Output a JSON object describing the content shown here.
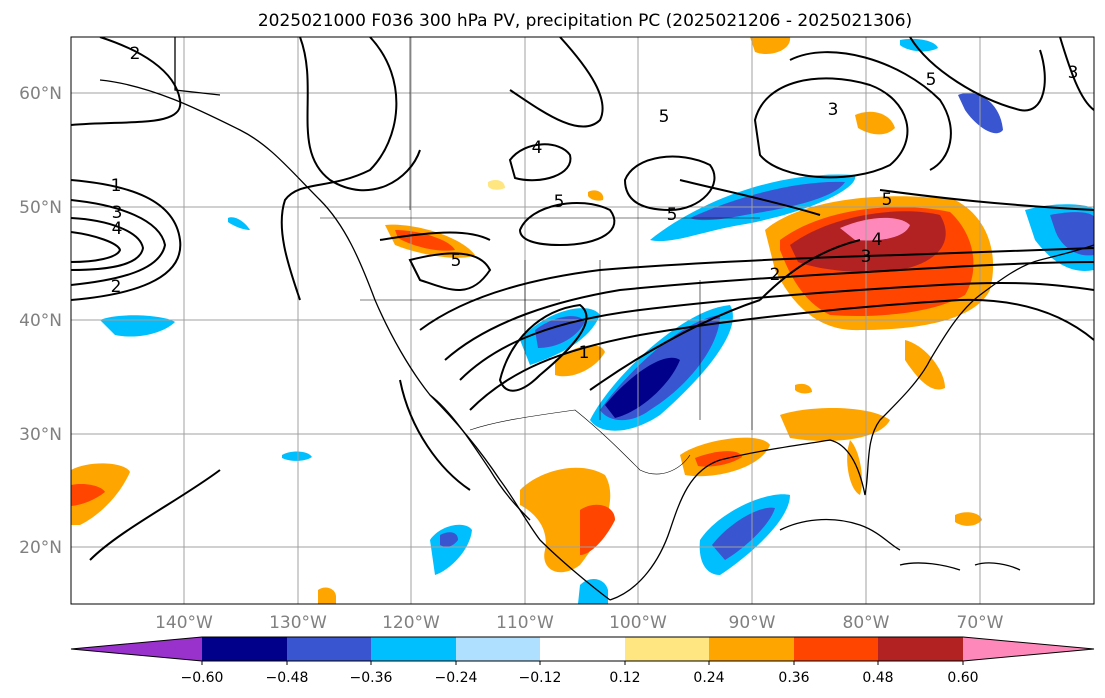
{
  "title": "2025021000 F036 300 hPa PV, precipitation PC (2025021206 - 2025021306)",
  "map": {
    "lon_range": [
      -150,
      -60
    ],
    "lat_range": [
      15,
      65
    ],
    "lon_ticks": [
      "140°W",
      "130°W",
      "120°W",
      "110°W",
      "100°W",
      "90°W",
      "80°W",
      "70°W"
    ],
    "lat_ticks": [
      "20°N",
      "30°N",
      "40°N",
      "50°N",
      "60°N"
    ],
    "grid": true,
    "pv_contour_labels": [
      "2",
      "1",
      "3",
      "4",
      "2",
      "4",
      "5",
      "5",
      "5",
      "3",
      "5",
      "3",
      "5",
      "4",
      "5",
      "2",
      "1",
      "3"
    ]
  },
  "colorbar": {
    "ticks": [
      "−0.60",
      "−0.48",
      "−0.36",
      "−0.24",
      "−0.12",
      "0.12",
      "0.24",
      "0.36",
      "0.48",
      "0.60"
    ],
    "colors": [
      "#9932cc",
      "#00008b",
      "#3a55d0",
      "#00bfff",
      "#b0e0ff",
      "#ffffff",
      "#ffe680",
      "#ffa500",
      "#ff4500",
      "#b22222",
      "#ff88bb"
    ]
  }
}
